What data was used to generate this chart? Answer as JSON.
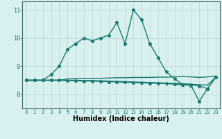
{
  "xlabel": "Humidex (Indice chaleur)",
  "x": [
    0,
    1,
    2,
    3,
    4,
    5,
    6,
    7,
    8,
    9,
    10,
    11,
    12,
    13,
    14,
    15,
    16,
    17,
    18,
    19,
    20,
    21,
    22,
    23
  ],
  "line1": [
    8.5,
    8.5,
    8.5,
    8.7,
    9.0,
    9.6,
    9.8,
    10.0,
    9.9,
    10.0,
    10.1,
    10.55,
    9.8,
    11.0,
    10.65,
    9.8,
    9.3,
    8.8,
    8.55,
    8.35,
    8.35,
    8.3,
    8.2,
    8.6
  ],
  "line2": [
    8.5,
    8.5,
    8.5,
    8.5,
    8.5,
    8.55,
    8.56,
    8.57,
    8.57,
    8.57,
    8.58,
    8.59,
    8.59,
    8.6,
    8.6,
    8.6,
    8.61,
    8.61,
    8.62,
    8.63,
    8.62,
    8.6,
    8.62,
    8.65
  ],
  "line3": [
    8.5,
    8.5,
    8.5,
    8.5,
    8.5,
    8.5,
    8.5,
    8.49,
    8.49,
    8.48,
    8.47,
    8.46,
    8.45,
    8.44,
    8.43,
    8.42,
    8.41,
    8.4,
    8.39,
    8.38,
    8.36,
    8.34,
    8.33,
    8.6
  ],
  "line4": [
    8.5,
    8.5,
    8.5,
    8.5,
    8.5,
    8.49,
    8.48,
    8.47,
    8.47,
    8.46,
    8.45,
    8.44,
    8.43,
    8.42,
    8.41,
    8.4,
    8.39,
    8.38,
    8.36,
    8.34,
    8.32,
    7.75,
    8.2,
    8.6
  ],
  "line_color": "#1a7a6e",
  "bg_color": "#d8f0ef",
  "grid_color": "#c0dedd",
  "ylim": [
    7.5,
    11.3
  ],
  "yticks": [
    8,
    9,
    10,
    11
  ],
  "xticks": [
    0,
    1,
    2,
    3,
    4,
    5,
    6,
    7,
    8,
    9,
    10,
    11,
    12,
    13,
    14,
    15,
    16,
    17,
    18,
    19,
    20,
    21,
    22,
    23
  ],
  "marker": "*",
  "markersize": 3.5,
  "linewidth": 1.0
}
